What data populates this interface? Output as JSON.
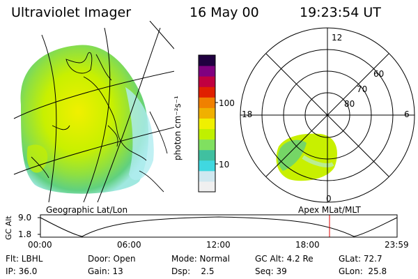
{
  "header": {
    "instrument": "Ultraviolet Imager",
    "date": "16 May 00",
    "time": "19:23:54 UT"
  },
  "left_panel": {
    "caption": "Geographic Lat/Lon"
  },
  "colorbar": {
    "label": "photon cm⁻²s⁻¹",
    "ticks": [
      "100",
      "10"
    ],
    "colors": [
      "#f0f0f0",
      "#d0e8f0",
      "#40d8e0",
      "#40c0a0",
      "#80e060",
      "#c0f000",
      "#f0f000",
      "#f0b000",
      "#f08000",
      "#e02000",
      "#c00040",
      "#800080",
      "#200040"
    ]
  },
  "polar_plot": {
    "caption": "Apex MLat/MLT",
    "mlt_labels": {
      "top": "12",
      "left": "18",
      "right": "6",
      "bottom": "0"
    },
    "lat_labels": [
      "60",
      "70",
      "80"
    ]
  },
  "orbit_plot": {
    "axis_label": "GC Alt",
    "y_ticks": [
      "9.0",
      "1.8"
    ],
    "x_ticks": [
      "00:00",
      "06:00",
      "12:00",
      "18:00",
      "23:59"
    ],
    "marker_color": "#e00000"
  },
  "info_table": {
    "row1": [
      "Flt: LBHL",
      "Door: Open",
      "Mode: Normal",
      "GC Alt: 4.2 Re",
      "GLat: 72.7"
    ],
    "row2": [
      "IP: 36.0",
      "Gain: 13",
      "Dsp:    2.5",
      "Seq: 39",
      "GLon:  25.8"
    ]
  }
}
